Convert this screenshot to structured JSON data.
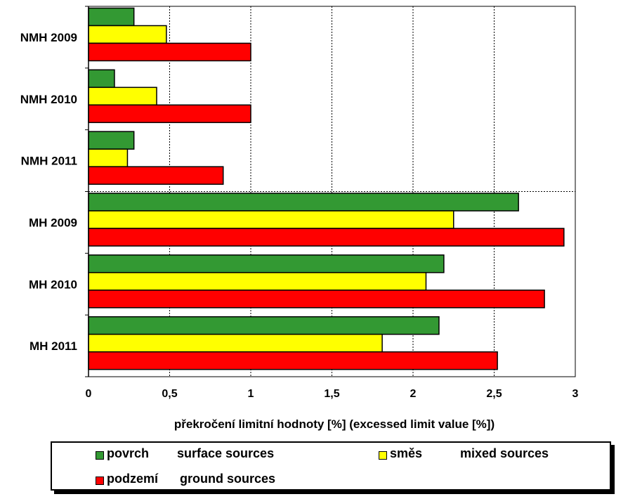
{
  "chart_data": {
    "type": "bar",
    "orientation": "horizontal",
    "categories": [
      "NMH 2009",
      "NMH 2010",
      "NMH 2011",
      "MH 2009",
      "MH 2010",
      "MH 2011"
    ],
    "series": [
      {
        "name": "povrch",
        "name_en": "surface sources",
        "color": "#339933",
        "values": [
          0.28,
          0.16,
          0.28,
          2.65,
          2.19,
          2.16
        ]
      },
      {
        "name": "směs",
        "name_en": "mixed sources",
        "color": "#ffff00",
        "values": [
          0.48,
          0.42,
          0.24,
          2.25,
          2.08,
          1.81
        ]
      },
      {
        "name": "podzemí",
        "name_en": "ground sources",
        "color": "#ff0000",
        "values": [
          1.0,
          1.0,
          0.83,
          2.93,
          2.81,
          2.52
        ]
      }
    ],
    "xlim": [
      0,
      3
    ],
    "xticks": [
      0,
      0.5,
      1,
      1.5,
      2,
      2.5,
      3
    ],
    "xtick_labels": [
      "0",
      "0,5",
      "1",
      "1,5",
      "2",
      "2,5",
      "3"
    ],
    "xlabel": "překročení limitní hodnoty [%]  (excessed limit value [%])",
    "grid": "vertical-dashed",
    "legend_position": "bottom"
  }
}
